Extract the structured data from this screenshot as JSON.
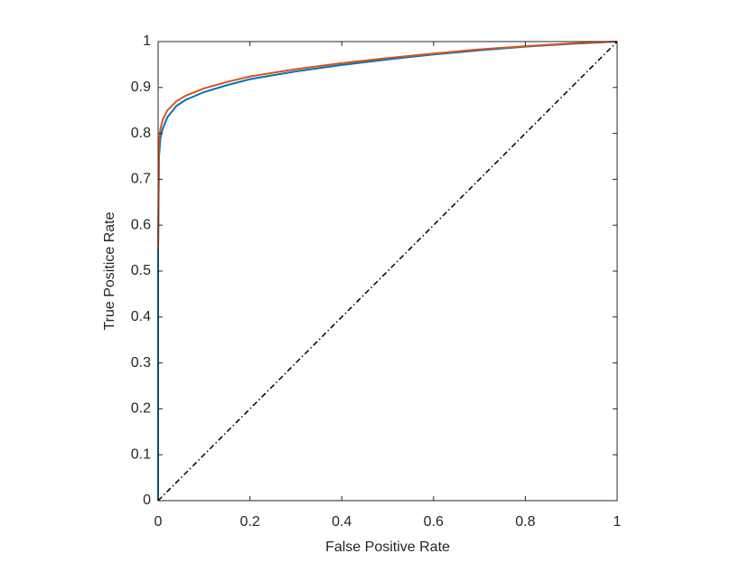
{
  "chart_data": {
    "type": "line",
    "xlabel": "False Positive Rate",
    "ylabel": "True Positice Rate",
    "xlim": [
      0,
      1
    ],
    "ylim": [
      0,
      1
    ],
    "xticks": [
      0,
      0.2,
      0.4,
      0.6,
      0.8,
      1
    ],
    "yticks": [
      0,
      0.1,
      0.2,
      0.3,
      0.4,
      0.5,
      0.6,
      0.7,
      0.8,
      0.9,
      1
    ],
    "grid": false,
    "series": [
      {
        "color": "#0072bd",
        "dash": "solid",
        "x": [
          0,
          0,
          0.002,
          0.005,
          0.01,
          0.02,
          0.04,
          0.06,
          0.1,
          0.15,
          0.2,
          0.3,
          0.4,
          0.5,
          0.6,
          0.7,
          0.8,
          0.9,
          1
        ],
        "values": [
          0,
          0.55,
          0.75,
          0.79,
          0.81,
          0.835,
          0.86,
          0.873,
          0.89,
          0.905,
          0.918,
          0.935,
          0.949,
          0.961,
          0.972,
          0.981,
          0.989,
          0.995,
          1
        ]
      },
      {
        "color": "#d95319",
        "dash": "solid",
        "x": [
          0,
          0.002,
          0.005,
          0.01,
          0.02,
          0.04,
          0.06,
          0.1,
          0.15,
          0.2,
          0.3,
          0.4,
          0.5,
          0.6,
          0.7,
          0.8,
          0.9,
          1
        ],
        "values": [
          0.55,
          0.78,
          0.81,
          0.83,
          0.85,
          0.87,
          0.882,
          0.898,
          0.912,
          0.924,
          0.94,
          0.953,
          0.964,
          0.974,
          0.983,
          0.99,
          0.996,
          1
        ]
      },
      {
        "color": "#000000",
        "dash": "dashdot",
        "x": [
          0,
          1
        ],
        "values": [
          0,
          1
        ]
      }
    ]
  }
}
